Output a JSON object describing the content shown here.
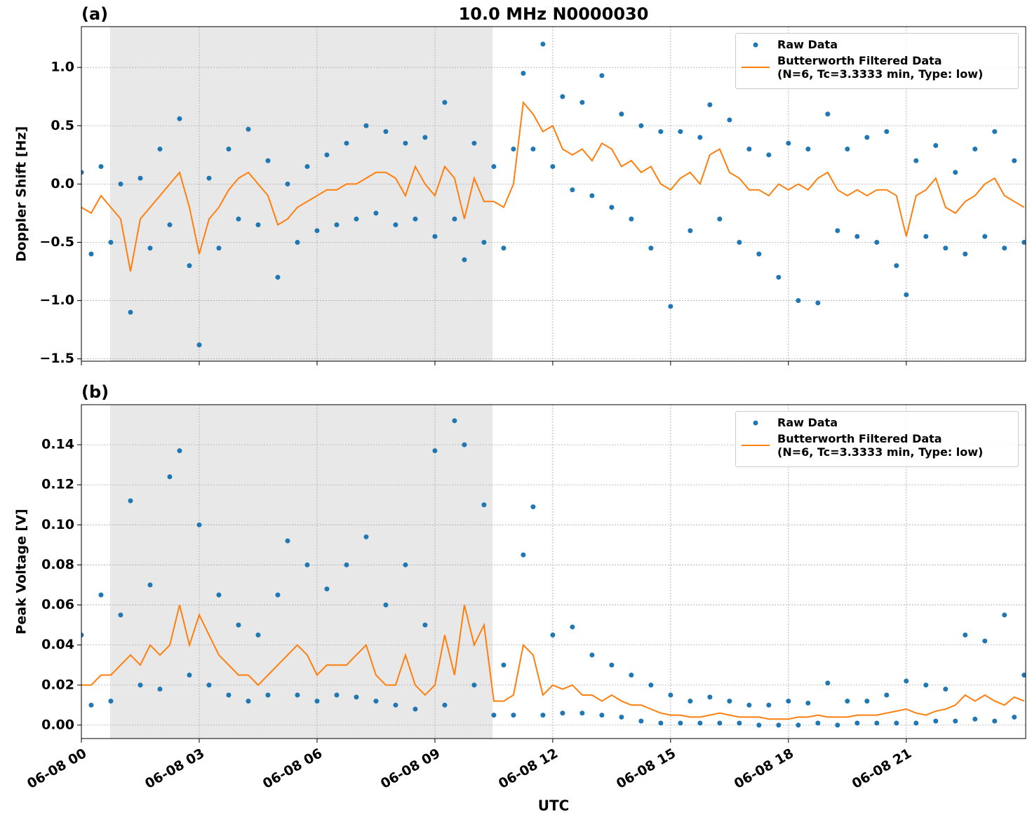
{
  "chart_data": [
    {
      "type": "scatter_line",
      "title": "10.0 MHz N0000030",
      "panel_label": "(a)",
      "ylabel": "Doppler Shift [Hz]",
      "xlim": [
        0,
        24.04
      ],
      "ylim": [
        -1.52,
        1.35
      ],
      "grid": true,
      "legend": "upper right",
      "shaded_span": [
        0.73,
        10.47
      ],
      "yticks": [
        {
          "value": 1.0,
          "label": "1.0"
        },
        {
          "value": 0.5,
          "label": "0.5"
        },
        {
          "value": 0.0,
          "label": "0.0"
        },
        {
          "value": -0.5,
          "label": "−0.5"
        },
        {
          "value": -1.0,
          "label": "−1.0"
        },
        {
          "value": -1.5,
          "label": "−1.5"
        }
      ],
      "x": [
        0,
        0.25,
        0.5,
        0.75,
        1,
        1.25,
        1.5,
        1.75,
        2,
        2.25,
        2.5,
        2.75,
        3,
        3.25,
        3.5,
        3.75,
        4,
        4.25,
        4.5,
        4.75,
        5,
        5.25,
        5.5,
        5.75,
        6,
        6.25,
        6.5,
        6.75,
        7,
        7.25,
        7.5,
        7.75,
        8,
        8.25,
        8.5,
        8.75,
        9,
        9.25,
        9.5,
        9.75,
        10,
        10.25,
        10.5,
        10.75,
        11,
        11.25,
        11.5,
        11.75,
        12,
        12.25,
        12.5,
        12.75,
        13,
        13.25,
        13.5,
        13.75,
        14,
        14.25,
        14.5,
        14.75,
        15,
        15.25,
        15.5,
        15.75,
        16,
        16.25,
        16.5,
        16.75,
        17,
        17.25,
        17.5,
        17.75,
        18,
        18.25,
        18.5,
        18.75,
        19,
        19.25,
        19.5,
        19.75,
        20,
        20.25,
        20.5,
        20.75,
        21,
        21.25,
        21.5,
        21.75,
        22,
        22.25,
        22.5,
        22.75,
        23,
        23.25,
        23.5,
        23.75,
        24
      ],
      "series": [
        {
          "name": "Raw Data",
          "color": "#1f77b4",
          "kind": "scatter",
          "values": [
            0.1,
            -0.6,
            0.15,
            -0.5,
            0.0,
            -1.1,
            0.05,
            -0.55,
            0.3,
            -0.35,
            0.56,
            -0.7,
            -1.38,
            0.05,
            -0.55,
            0.3,
            -0.3,
            0.47,
            -0.35,
            0.2,
            -0.8,
            0.0,
            -0.5,
            0.15,
            -0.4,
            0.25,
            -0.35,
            0.35,
            -0.3,
            0.5,
            -0.25,
            0.45,
            -0.35,
            0.35,
            -0.3,
            0.4,
            -0.45,
            0.7,
            -0.3,
            -0.65,
            0.35,
            -0.5,
            0.15,
            -0.55,
            0.3,
            0.95,
            0.3,
            1.2,
            0.15,
            0.75,
            -0.05,
            0.7,
            -0.1,
            0.93,
            -0.2,
            0.6,
            -0.3,
            0.5,
            -0.55,
            0.45,
            -1.05,
            0.45,
            -0.4,
            0.4,
            0.68,
            -0.3,
            0.55,
            -0.5,
            0.3,
            -0.6,
            0.25,
            -0.8,
            0.35,
            -1.0,
            0.3,
            -1.02,
            0.6,
            -0.4,
            0.3,
            -0.45,
            0.4,
            -0.5,
            0.45,
            -0.7,
            -0.95,
            0.2,
            -0.45,
            0.33,
            -0.55,
            0.1,
            -0.6,
            0.3,
            -0.45,
            0.45,
            -0.55,
            0.2,
            -0.5
          ]
        },
        {
          "name": "Butterworth Filtered Data\n(N=6, Tc=3.3333 min, Type: low)",
          "color": "#ff7f0e",
          "kind": "line",
          "values": [
            -0.2,
            -0.25,
            -0.1,
            -0.2,
            -0.3,
            -0.75,
            -0.3,
            -0.2,
            -0.1,
            0.0,
            0.1,
            -0.2,
            -0.6,
            -0.3,
            -0.2,
            -0.05,
            0.05,
            0.1,
            0.0,
            -0.1,
            -0.35,
            -0.3,
            -0.2,
            -0.15,
            -0.1,
            -0.05,
            -0.05,
            0.0,
            0.0,
            0.05,
            0.1,
            0.1,
            0.05,
            -0.1,
            0.15,
            0.0,
            -0.1,
            0.15,
            0.05,
            -0.3,
            0.05,
            -0.15,
            -0.15,
            -0.2,
            0.0,
            0.7,
            0.6,
            0.45,
            0.5,
            0.3,
            0.25,
            0.3,
            0.2,
            0.35,
            0.3,
            0.15,
            0.2,
            0.1,
            0.15,
            0.0,
            -0.05,
            0.05,
            0.1,
            0.0,
            0.25,
            0.3,
            0.1,
            0.05,
            -0.05,
            -0.05,
            -0.1,
            0.0,
            -0.05,
            0.0,
            -0.05,
            0.05,
            0.1,
            -0.05,
            -0.1,
            -0.05,
            -0.1,
            -0.05,
            -0.05,
            -0.1,
            -0.45,
            -0.1,
            -0.05,
            0.05,
            -0.2,
            -0.25,
            -0.15,
            -0.1,
            0.0,
            0.05,
            -0.1,
            -0.15,
            -0.2
          ]
        }
      ]
    },
    {
      "type": "scatter_line",
      "panel_label": "(b)",
      "ylabel": "Peak Voltage [V]",
      "xlabel": "UTC",
      "xlim": [
        0,
        24.04
      ],
      "ylim": [
        -0.0067,
        0.16
      ],
      "grid": true,
      "legend": "upper right",
      "shaded_span": [
        0.73,
        10.47
      ],
      "xticks": [
        {
          "value": 0,
          "label": "06-08 00"
        },
        {
          "value": 3,
          "label": "06-08 03"
        },
        {
          "value": 6,
          "label": "06-08 06"
        },
        {
          "value": 9,
          "label": "06-08 09"
        },
        {
          "value": 12,
          "label": "06-08 12"
        },
        {
          "value": 15,
          "label": "06-08 15"
        },
        {
          "value": 18,
          "label": "06-08 18"
        },
        {
          "value": 21,
          "label": "06-08 21"
        }
      ],
      "yticks": [
        {
          "value": 0,
          "label": "0.00"
        },
        {
          "value": 0.02,
          "label": "0.02"
        },
        {
          "value": 0.04,
          "label": "0.04"
        },
        {
          "value": 0.06,
          "label": "0.06"
        },
        {
          "value": 0.08,
          "label": "0.08"
        },
        {
          "value": 0.1,
          "label": "0.10"
        },
        {
          "value": 0.12,
          "label": "0.12"
        },
        {
          "value": 0.14,
          "label": "0.14"
        }
      ],
      "x": [
        0,
        0.25,
        0.5,
        0.75,
        1,
        1.25,
        1.5,
        1.75,
        2,
        2.25,
        2.5,
        2.75,
        3,
        3.25,
        3.5,
        3.75,
        4,
        4.25,
        4.5,
        4.75,
        5,
        5.25,
        5.5,
        5.75,
        6,
        6.25,
        6.5,
        6.75,
        7,
        7.25,
        7.5,
        7.75,
        8,
        8.25,
        8.5,
        8.75,
        9,
        9.25,
        9.5,
        9.75,
        10,
        10.25,
        10.5,
        10.75,
        11,
        11.25,
        11.5,
        11.75,
        12,
        12.25,
        12.5,
        12.75,
        13,
        13.25,
        13.5,
        13.75,
        14,
        14.25,
        14.5,
        14.75,
        15,
        15.25,
        15.5,
        15.75,
        16,
        16.25,
        16.5,
        16.75,
        17,
        17.25,
        17.5,
        17.75,
        18,
        18.25,
        18.5,
        18.75,
        19,
        19.25,
        19.5,
        19.75,
        20,
        20.25,
        20.5,
        20.75,
        21,
        21.25,
        21.5,
        21.75,
        22,
        22.25,
        22.5,
        22.75,
        23,
        23.25,
        23.5,
        23.75,
        24
      ],
      "series": [
        {
          "name": "Raw Data",
          "color": "#1f77b4",
          "kind": "scatter",
          "values": [
            0.045,
            0.01,
            0.065,
            0.012,
            0.055,
            0.112,
            0.02,
            0.07,
            0.018,
            0.124,
            0.137,
            0.025,
            0.1,
            0.02,
            0.065,
            0.015,
            0.05,
            0.012,
            0.045,
            0.015,
            0.065,
            0.092,
            0.015,
            0.08,
            0.012,
            0.068,
            0.015,
            0.08,
            0.014,
            0.094,
            0.012,
            0.06,
            0.01,
            0.08,
            0.008,
            0.05,
            0.137,
            0.01,
            0.152,
            0.14,
            0.02,
            0.11,
            0.005,
            0.03,
            0.005,
            0.085,
            0.109,
            0.005,
            0.045,
            0.006,
            0.049,
            0.006,
            0.035,
            0.005,
            0.03,
            0.004,
            0.025,
            0.002,
            0.02,
            0.001,
            0.015,
            0.001,
            0.012,
            0.001,
            0.014,
            0.001,
            0.012,
            0.001,
            0.01,
            0.0,
            0.01,
            0.0,
            0.012,
            0.0,
            0.011,
            0.001,
            0.021,
            0.0,
            0.012,
            0.001,
            0.012,
            0.001,
            0.015,
            0.001,
            0.022,
            0.001,
            0.02,
            0.002,
            0.018,
            0.002,
            0.045,
            0.003,
            0.042,
            0.002,
            0.055,
            0.004,
            0.025
          ]
        },
        {
          "name": "Butterworth Filtered Data\n(N=6, Tc=3.3333 min, Type: low)",
          "color": "#ff7f0e",
          "kind": "line",
          "values": [
            0.02,
            0.02,
            0.025,
            0.025,
            0.03,
            0.035,
            0.03,
            0.04,
            0.035,
            0.04,
            0.06,
            0.04,
            0.055,
            0.045,
            0.035,
            0.03,
            0.025,
            0.025,
            0.02,
            0.025,
            0.03,
            0.035,
            0.04,
            0.035,
            0.025,
            0.03,
            0.03,
            0.03,
            0.035,
            0.04,
            0.025,
            0.02,
            0.02,
            0.035,
            0.02,
            0.015,
            0.02,
            0.045,
            0.025,
            0.06,
            0.04,
            0.05,
            0.012,
            0.012,
            0.015,
            0.04,
            0.035,
            0.015,
            0.02,
            0.018,
            0.02,
            0.015,
            0.015,
            0.012,
            0.015,
            0.012,
            0.01,
            0.01,
            0.008,
            0.006,
            0.005,
            0.005,
            0.004,
            0.004,
            0.005,
            0.006,
            0.005,
            0.004,
            0.004,
            0.004,
            0.003,
            0.003,
            0.003,
            0.004,
            0.004,
            0.005,
            0.004,
            0.004,
            0.004,
            0.005,
            0.005,
            0.005,
            0.006,
            0.007,
            0.008,
            0.006,
            0.005,
            0.007,
            0.008,
            0.01,
            0.015,
            0.012,
            0.015,
            0.012,
            0.01,
            0.014,
            0.012
          ]
        }
      ]
    }
  ]
}
